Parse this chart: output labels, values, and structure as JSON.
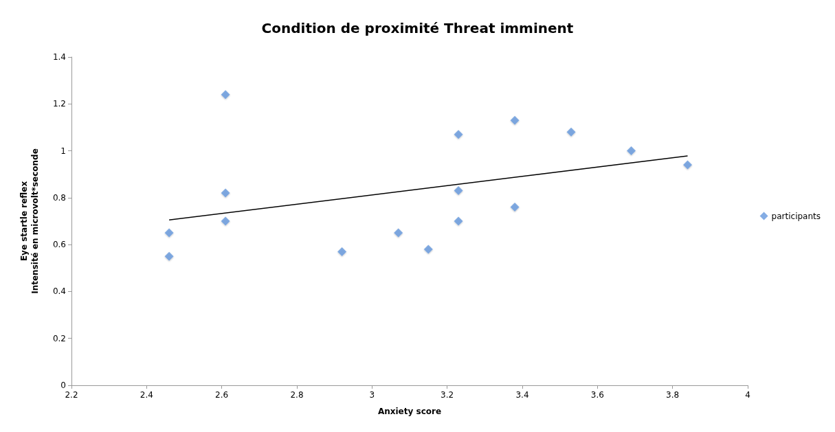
{
  "chart_data": {
    "type": "scatter",
    "title": "Condition de proximité Threat imminent",
    "xlabel": "Anxiety score",
    "ylabel": "Eye startle reflex\nIntensité en microvolt*seconde",
    "xlim": [
      2.2,
      4
    ],
    "xticks": [
      2.2,
      2.4,
      2.6,
      2.8,
      3,
      3.2,
      3.4,
      3.6,
      3.8,
      4
    ],
    "ylim": [
      0,
      1.4
    ],
    "yticks": [
      0,
      0.2,
      0.4,
      0.6,
      0.8,
      1,
      1.2,
      1.4
    ],
    "grid": false,
    "legend": "right",
    "marker": "diamond",
    "series": [
      {
        "name": "participants",
        "color": "#6699dd",
        "x": [
          2.46,
          2.46,
          2.61,
          2.61,
          2.61,
          2.92,
          3.07,
          3.15,
          3.23,
          3.23,
          3.23,
          3.38,
          3.38,
          3.53,
          3.69,
          3.84
        ],
        "values": [
          0.65,
          0.55,
          1.24,
          0.82,
          0.7,
          0.57,
          0.65,
          0.58,
          1.07,
          0.83,
          0.7,
          1.13,
          0.76,
          1.08,
          1.0,
          0.94
        ]
      },
      {
        "type": "line",
        "color": "#000000",
        "marker": "none",
        "x": [
          2.46,
          3.84
        ],
        "values": [
          0.705,
          0.978
        ]
      }
    ]
  }
}
